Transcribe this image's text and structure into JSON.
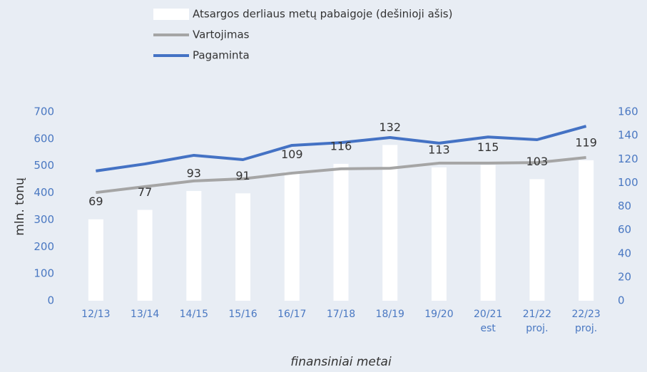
{
  "chart_data": {
    "type": "combo",
    "categories": [
      "12/13",
      "13/14",
      "14/15",
      "15/16",
      "16/17",
      "17/18",
      "18/19",
      "19/20",
      "20/21 est",
      "21/22 proj.",
      "22/23 proj."
    ],
    "series": [
      {
        "name": "Atsargos derliaus metų pabaigoje (dešinioji ašis)",
        "type": "bar",
        "axis": "y2",
        "color": "#ffffff",
        "values": [
          69,
          77,
          93,
          91,
          109,
          116,
          132,
          113,
          115,
          103,
          119
        ]
      },
      {
        "name": "Vartojimas",
        "type": "line",
        "color": "#a5a5a5",
        "values": [
          401,
          423,
          444,
          452,
          473,
          489,
          491,
          510,
          510,
          512,
          531
        ]
      },
      {
        "name": "Pagaminta",
        "type": "line",
        "color": "#4472c4",
        "values": [
          481,
          507,
          539,
          523,
          576,
          586,
          605,
          584,
          607,
          597,
          647
        ]
      }
    ],
    "ylabel": "mln. tonų",
    "xlabel": "finansiniai metai",
    "ylim": [
      0,
      700
    ],
    "yticks": [
      0,
      100,
      200,
      300,
      400,
      500,
      600,
      700
    ],
    "y2lim": [
      0,
      160
    ],
    "y2ticks": [
      0,
      20,
      40,
      60,
      80,
      100,
      120,
      140,
      160
    ]
  }
}
